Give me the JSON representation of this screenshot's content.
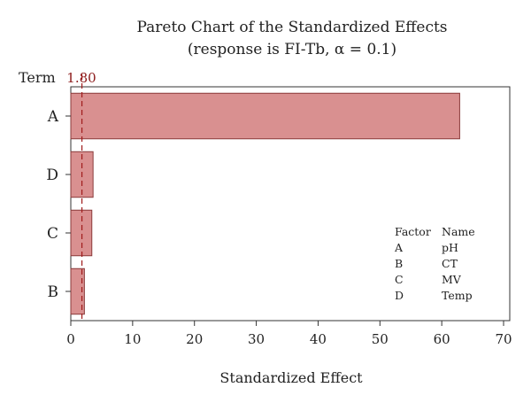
{
  "chart_data": {
    "type": "bar",
    "orientation": "horizontal",
    "title": "Pareto Chart of the Standardized Effects",
    "subtitle": "(response is FI-Tb, α = 0.1)",
    "ylabel": "Term",
    "xlabel": "Standardized Effect",
    "categories": [
      "A",
      "D",
      "C",
      "B"
    ],
    "values": [
      62.9,
      3.6,
      3.4,
      2.2
    ],
    "xlim": [
      0,
      71
    ],
    "xticks": [
      0,
      10,
      20,
      30,
      40,
      50,
      60,
      70
    ],
    "xtick_labels": [
      "0",
      "10",
      "20",
      "30",
      "40",
      "50",
      "60",
      "70"
    ],
    "reference_line": {
      "value": 1.8,
      "label": "1.80",
      "color": "#a01c1c"
    },
    "bar_fill": "#d99090",
    "bar_stroke": "#8a3a3a",
    "grid": false,
    "legend": {
      "placement": "bottom-right",
      "header": [
        "Factor",
        "Name"
      ],
      "rows": [
        [
          "A",
          "pH"
        ],
        [
          "B",
          "CT"
        ],
        [
          "C",
          "MV"
        ],
        [
          "D",
          "Temp"
        ]
      ]
    }
  }
}
